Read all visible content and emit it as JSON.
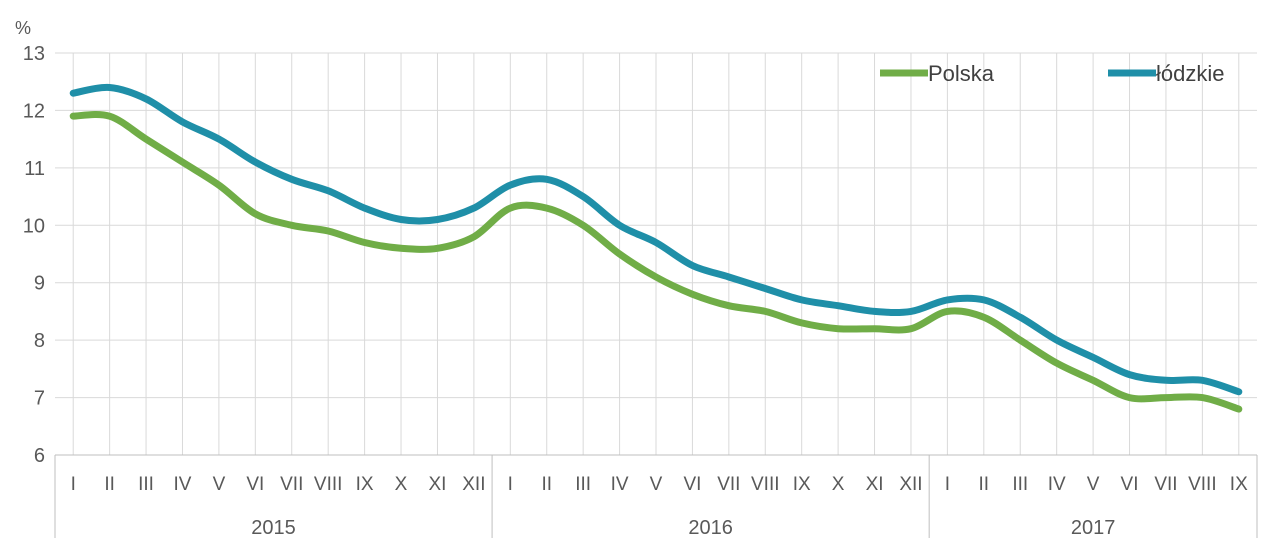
{
  "chart_data": {
    "type": "line",
    "y_unit": "%",
    "ylim": [
      6,
      13
    ],
    "y_ticks": [
      6,
      7,
      8,
      9,
      10,
      11,
      12,
      13
    ],
    "grid": true,
    "legend_placement": "top-right",
    "year_groups": [
      {
        "label": "2015",
        "months": 12
      },
      {
        "label": "2016",
        "months": 12
      },
      {
        "label": "2017",
        "months": 9
      }
    ],
    "categories": [
      "I",
      "II",
      "III",
      "IV",
      "V",
      "VI",
      "VII",
      "VIII",
      "IX",
      "X",
      "XI",
      "XII",
      "I",
      "II",
      "III",
      "IV",
      "V",
      "VI",
      "VII",
      "VIII",
      "IX",
      "X",
      "XI",
      "XII",
      "I",
      "II",
      "III",
      "IV",
      "V",
      "VI",
      "VII",
      "VIII",
      "IX"
    ],
    "series": [
      {
        "name": "Polska",
        "color": "#70AD47",
        "values": [
          11.9,
          11.9,
          11.5,
          11.1,
          10.7,
          10.2,
          10.0,
          9.9,
          9.7,
          9.6,
          9.6,
          9.8,
          10.3,
          10.3,
          10.0,
          9.5,
          9.1,
          8.8,
          8.6,
          8.5,
          8.3,
          8.2,
          8.2,
          8.2,
          8.5,
          8.4,
          8.0,
          7.6,
          7.3,
          7.0,
          7.0,
          7.0,
          6.8
        ]
      },
      {
        "name": "łódzkie",
        "color": "#1F8FA8",
        "values": [
          12.3,
          12.4,
          12.2,
          11.8,
          11.5,
          11.1,
          10.8,
          10.6,
          10.3,
          10.1,
          10.1,
          10.3,
          10.7,
          10.8,
          10.5,
          10.0,
          9.7,
          9.3,
          9.1,
          8.9,
          8.7,
          8.6,
          8.5,
          8.5,
          8.7,
          8.7,
          8.4,
          8.0,
          7.7,
          7.4,
          7.3,
          7.3,
          7.1
        ]
      }
    ]
  }
}
